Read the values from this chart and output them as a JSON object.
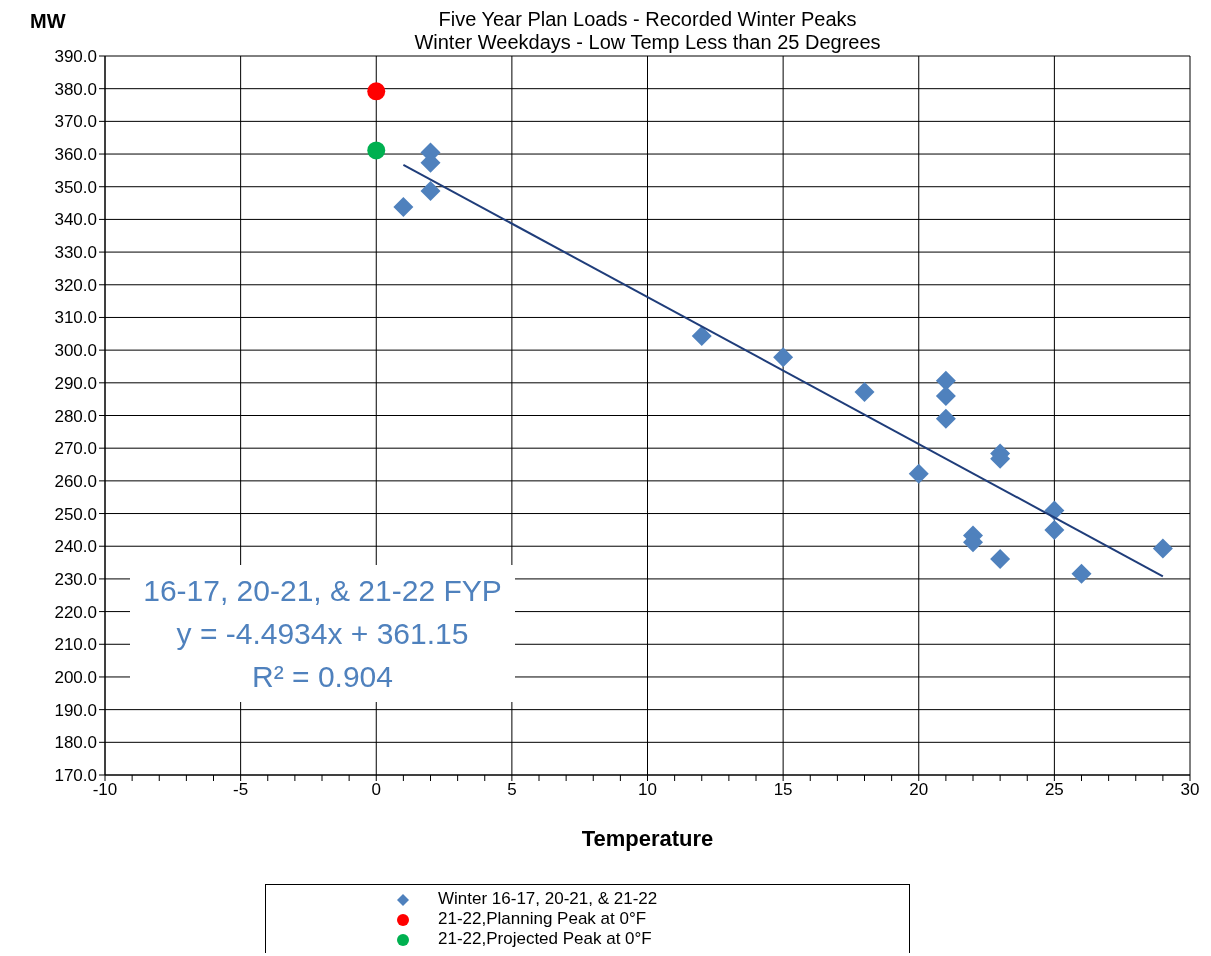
{
  "chart_data": {
    "type": "scatter",
    "title": "Five Year Plan Loads - Recorded Winter Peaks",
    "subtitle": "Winter Weekdays - Low Temp Less than 25 Degrees",
    "xlabel": "Temperature",
    "ylabel": "MW",
    "annotations": [
      "16-17, 20-21, & 21-22 FYP",
      "y = -4.4934x + 361.15",
      "R² = 0.904"
    ],
    "xlim": [
      -10,
      30
    ],
    "xticks": [
      -10,
      {
        "value": -9,
        "label": null
      },
      {
        "value": -8,
        "label": null
      },
      {
        "value": -7,
        "label": null
      },
      {
        "value": -6,
        "label": null
      },
      -5,
      {
        "value": -4,
        "label": null
      },
      {
        "value": -3,
        "label": null
      },
      {
        "value": -2,
        "label": null
      },
      {
        "value": -1,
        "label": null
      },
      0,
      {
        "value": 1,
        "label": null
      },
      {
        "value": 2,
        "label": null
      },
      {
        "value": 3,
        "label": null
      },
      {
        "value": 4,
        "label": null
      },
      5,
      {
        "value": 6,
        "label": null
      },
      {
        "value": 7,
        "label": null
      },
      {
        "value": 8,
        "label": null
      },
      {
        "value": 9,
        "label": null
      },
      10,
      {
        "value": 11,
        "label": null
      },
      {
        "value": 12,
        "label": null
      },
      {
        "value": 13,
        "label": null
      },
      {
        "value": 14,
        "label": null
      },
      15,
      {
        "value": 16,
        "label": null
      },
      {
        "value": 17,
        "label": null
      },
      {
        "value": 18,
        "label": null
      },
      {
        "value": 19,
        "label": null
      },
      20,
      {
        "value": 21,
        "label": null
      },
      {
        "value": 22,
        "label": null
      },
      {
        "value": 23,
        "label": null
      },
      {
        "value": 24,
        "label": null
      },
      25,
      {
        "value": 26,
        "label": null
      },
      {
        "value": 27,
        "label": null
      },
      {
        "value": 28,
        "label": null
      },
      {
        "value": 29,
        "label": null
      },
      30
    ],
    "ylim": [
      170,
      390
    ],
    "yticks": [
      {
        "value": 170,
        "label": "170.0"
      },
      {
        "value": 180,
        "label": "180.0"
      },
      {
        "value": 190,
        "label": "190.0"
      },
      {
        "value": 200,
        "label": "200.0"
      },
      {
        "value": 210,
        "label": "210.0"
      },
      {
        "value": 220,
        "label": "220.0"
      },
      {
        "value": 230,
        "label": "230.0"
      },
      {
        "value": 240,
        "label": "240.0"
      },
      {
        "value": 250,
        "label": "250.0"
      },
      {
        "value": 260,
        "label": "260.0"
      },
      {
        "value": 270,
        "label": "270.0"
      },
      {
        "value": 280,
        "label": "280.0"
      },
      {
        "value": 290,
        "label": "290.0"
      },
      {
        "value": 300,
        "label": "300.0"
      },
      {
        "value": 310,
        "label": "310.0"
      },
      {
        "value": 320,
        "label": "320.0"
      },
      {
        "value": 330,
        "label": "330.0"
      },
      {
        "value": 340,
        "label": "340.0"
      },
      {
        "value": 350,
        "label": "350.0"
      },
      {
        "value": 360,
        "label": "360.0"
      },
      {
        "value": 370,
        "label": "370.0"
      },
      {
        "value": 380,
        "label": "380.0"
      },
      {
        "value": 390,
        "label": "390.0"
      }
    ],
    "grid": true,
    "legend": "bottom",
    "series": [
      {
        "name": "Winter 16-17, 20-21, & 21-22",
        "color": "#4f81bd",
        "marker": "diamond",
        "x": [
          1,
          2,
          2,
          2,
          12,
          15,
          18,
          20,
          21,
          21,
          21,
          22,
          22,
          23,
          23,
          23,
          25,
          25,
          26,
          29
        ],
        "values": [
          343.8,
          360.5,
          357.3,
          348.7,
          304.3,
          297.8,
          287.2,
          262.2,
          290.6,
          286.0,
          279.0,
          243.3,
          241.2,
          268.4,
          266.8,
          236.1,
          250.9,
          245.0,
          231.6,
          239.3
        ]
      },
      {
        "name": "21-22,Planning Peak at 0°F",
        "color": "#ff0000",
        "marker": "circle",
        "x": [
          0
        ],
        "values": [
          379.2
        ]
      },
      {
        "name": "21-22,Projected Peak at 0°F",
        "color": "#00b050",
        "marker": "circle",
        "x": [
          0
        ],
        "values": [
          361.1
        ]
      },
      {
        "type": "line",
        "color": "#1f3d7a",
        "marker": "none",
        "line_style": "solid",
        "x": [
          1,
          29
        ],
        "values": [
          356.7,
          230.8
        ]
      }
    ]
  }
}
